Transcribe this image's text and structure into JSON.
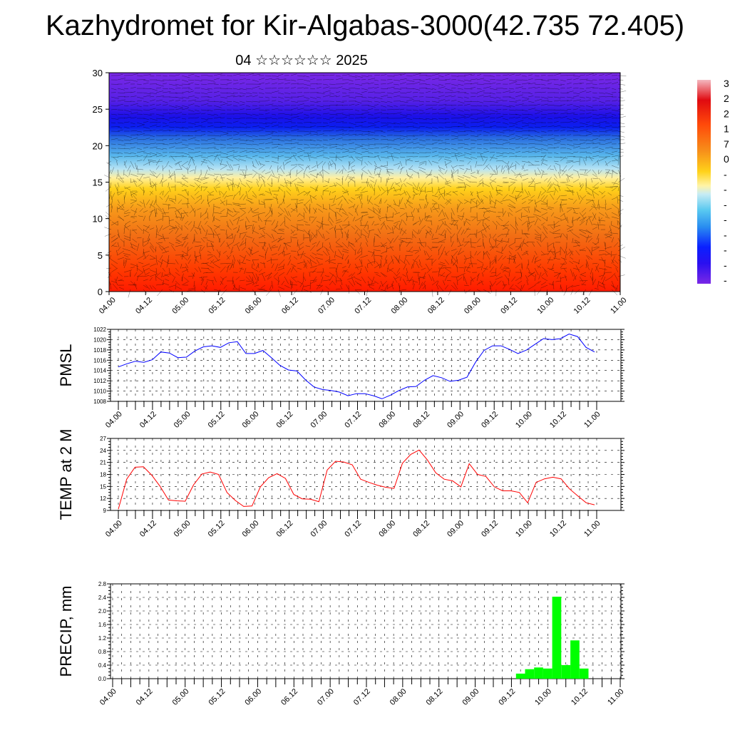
{
  "title": "Kazhydromet for Kir-Algabas-3000(42.735 72.405)",
  "subtitle": "04 ☆☆☆☆☆☆ 2025",
  "x_tick_labels": [
    "04.00",
    "04.12",
    "05.00",
    "05.12",
    "06.00",
    "06.12",
    "07.00",
    "07.12",
    "08.00",
    "08.12",
    "09.00",
    "09.12",
    "10.00",
    "10.12",
    "11.00"
  ],
  "colorbar_labels": [
    "3",
    "2",
    "2",
    "1",
    "7",
    "0",
    "-",
    "-",
    "-",
    "-",
    "-",
    "-",
    "-",
    "-"
  ],
  "chart_data": [
    {
      "type": "heatmap",
      "name": "cross-section",
      "ylim": [
        0,
        30
      ],
      "y_ticks": [
        0,
        5,
        10,
        15,
        20,
        25,
        30
      ],
      "x_ticks": [
        "04.00",
        "04.12",
        "05.00",
        "05.12",
        "06.00",
        "06.12",
        "07.00",
        "07.12",
        "08.00",
        "08.12",
        "09.00",
        "09.12",
        "10.00",
        "10.12",
        "11.00"
      ],
      "grid": false,
      "legend": "colorbar right"
    },
    {
      "type": "line",
      "ylabel": "PMSL",
      "color": "#0000ff",
      "ylim": [
        1008,
        1022
      ],
      "y_ticks": [
        1008,
        1010,
        1012,
        1014,
        1016,
        1018,
        1020,
        1022
      ],
      "x_ticks": [
        "04.00",
        "04.12",
        "05.00",
        "05.12",
        "06.00",
        "06.12",
        "07.00",
        "07.12",
        "08.00",
        "08.12",
        "09.00",
        "09.12",
        "10.00",
        "10.12",
        "11.00"
      ],
      "grid": true,
      "values": [
        1014.7,
        1015.3,
        1015.8,
        1015.6,
        1016.1,
        1017.6,
        1017.4,
        1016.5,
        1016.6,
        1017.8,
        1018.6,
        1018.8,
        1018.5,
        1019.4,
        1019.6,
        1017.3,
        1017.3,
        1017.9,
        1016.5,
        1015.0,
        1014.1,
        1013.9,
        1012.2,
        1010.8,
        1010.3,
        1010.1,
        1009.8,
        1009.1,
        1009.5,
        1009.5,
        1009.1,
        1008.5,
        1009.2,
        1010.1,
        1010.8,
        1010.9,
        1012.1,
        1013.0,
        1012.6,
        1011.9,
        1012.1,
        1012.7,
        1015.6,
        1017.9,
        1018.8,
        1018.8,
        1018.1,
        1017.3,
        1018.0,
        1019.1,
        1020.2,
        1020.0,
        1020.2,
        1021.1,
        1020.6,
        1018.5,
        1017.6
      ]
    },
    {
      "type": "line",
      "ylabel": "TEMP at 2 M",
      "color": "#ff0000",
      "ylim": [
        9,
        27
      ],
      "y_ticks": [
        9,
        12,
        15,
        18,
        21,
        24,
        27
      ],
      "x_ticks": [
        "04.00",
        "04.12",
        "05.00",
        "05.12",
        "06.00",
        "06.12",
        "07.00",
        "07.12",
        "08.00",
        "08.12",
        "09.00",
        "09.12",
        "10.00",
        "10.12",
        "11.00"
      ],
      "grid": true,
      "values": [
        9.3,
        16.8,
        19.8,
        19.9,
        17.8,
        15.0,
        11.6,
        11.4,
        11.3,
        15.4,
        18.1,
        18.6,
        18.0,
        13.5,
        11.5,
        10.0,
        10.1,
        14.9,
        17.2,
        18.2,
        17.0,
        13.0,
        11.9,
        11.8,
        11.2,
        19.1,
        21.3,
        21.1,
        20.4,
        16.8,
        16.0,
        15.3,
        14.8,
        14.5,
        20.8,
        23.0,
        24.1,
        21.6,
        18.4,
        16.8,
        16.4,
        14.9,
        20.7,
        18.0,
        17.5,
        14.9,
        13.9,
        13.9,
        13.5,
        10.9,
        16.0,
        16.9,
        17.3,
        16.9,
        14.4,
        12.6,
        10.9,
        10.4
      ]
    },
    {
      "type": "bar",
      "ylabel": "PRECIP, mm",
      "color": "#00ff00",
      "ylim": [
        0,
        2.8
      ],
      "y_ticks": [
        "0.0",
        "0.4",
        "0.8",
        "1.2",
        "1.6",
        "2.0",
        "2.4",
        "2.8"
      ],
      "x_ticks": [
        "04.00",
        "04.12",
        "05.00",
        "05.12",
        "06.00",
        "06.12",
        "07.00",
        "07.12",
        "08.00",
        "08.12",
        "09.00",
        "09.12",
        "10.00",
        "10.12",
        "11.00"
      ],
      "grid": true,
      "bins": [
        {
          "time": "09.15",
          "value": 0.15
        },
        {
          "time": "09.18",
          "value": 0.28
        },
        {
          "time": "09.21",
          "value": 0.33
        },
        {
          "time": "10.00",
          "value": 0.3
        },
        {
          "time": "10.03",
          "value": 2.42
        },
        {
          "time": "10.06",
          "value": 0.4
        },
        {
          "time": "10.09",
          "value": 1.13
        },
        {
          "time": "10.12",
          "value": 0.3
        }
      ]
    }
  ]
}
